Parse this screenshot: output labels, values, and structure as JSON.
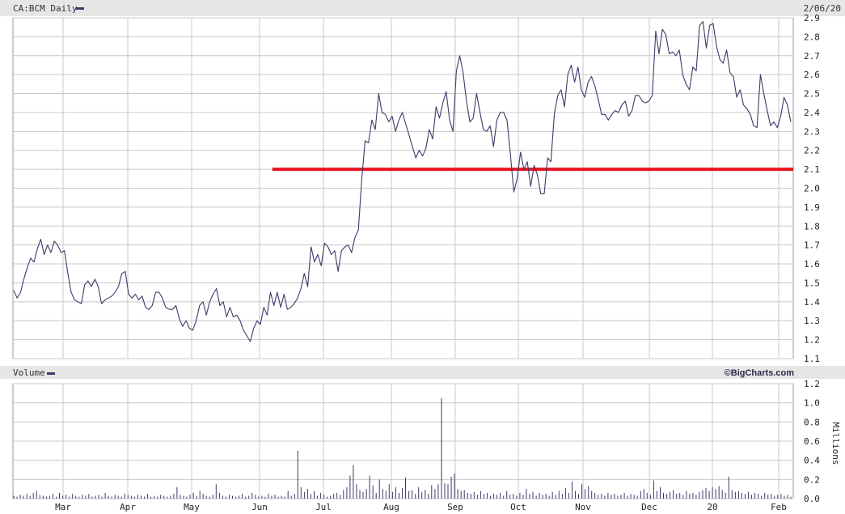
{
  "chart_data": [
    {
      "type": "line",
      "title": "CA:BCM Daily",
      "date_label": "2/06/20",
      "y_axis": {
        "range": [
          1.1,
          2.9
        ],
        "ticks": [
          "2.9",
          "2.8",
          "2.7",
          "2.6",
          "2.5",
          "2.4",
          "2.3",
          "2.2",
          "2.1",
          "2.0",
          "1.9",
          "1.8",
          "1.7",
          "1.6",
          "1.5",
          "1.4",
          "1.3",
          "1.2",
          "1.1"
        ]
      },
      "grid": true,
      "colors": {
        "price_line": "#3a3a6a",
        "support_line": "#e8141e",
        "grid": "#c8c8c8",
        "header_band": "#e6e6e6"
      },
      "support_line": {
        "value": 2.1,
        "start_month_index": 3.2
      },
      "series": [
        {
          "name": "CA:BCM",
          "values": [
            1.46,
            1.42,
            1.45,
            1.52,
            1.58,
            1.63,
            1.61,
            1.68,
            1.73,
            1.65,
            1.7,
            1.66,
            1.72,
            1.7,
            1.66,
            1.67,
            1.55,
            1.45,
            1.41,
            1.4,
            1.39,
            1.49,
            1.51,
            1.48,
            1.52,
            1.48,
            1.39,
            1.41,
            1.42,
            1.43,
            1.45,
            1.48,
            1.55,
            1.56,
            1.44,
            1.42,
            1.44,
            1.41,
            1.43,
            1.37,
            1.36,
            1.38,
            1.45,
            1.45,
            1.42,
            1.37,
            1.36,
            1.36,
            1.38,
            1.31,
            1.27,
            1.3,
            1.26,
            1.25,
            1.3,
            1.38,
            1.4,
            1.33,
            1.4,
            1.44,
            1.47,
            1.38,
            1.4,
            1.32,
            1.37,
            1.32,
            1.33,
            1.3,
            1.25,
            1.22,
            1.19,
            1.26,
            1.3,
            1.28,
            1.37,
            1.33,
            1.45,
            1.38,
            1.45,
            1.37,
            1.44,
            1.36,
            1.37,
            1.39,
            1.42,
            1.47,
            1.55,
            1.48,
            1.69,
            1.61,
            1.65,
            1.59,
            1.71,
            1.69,
            1.65,
            1.67,
            1.56,
            1.67,
            1.69,
            1.7,
            1.66,
            1.74,
            1.78,
            2.05,
            2.25,
            2.24,
            2.36,
            2.31,
            2.5,
            2.4,
            2.39,
            2.35,
            2.38,
            2.3,
            2.36,
            2.4,
            2.34,
            2.28,
            2.22,
            2.16,
            2.2,
            2.17,
            2.21,
            2.31,
            2.26,
            2.43,
            2.37,
            2.45,
            2.51,
            2.36,
            2.3,
            2.62,
            2.7,
            2.61,
            2.46,
            2.35,
            2.37,
            2.5,
            2.4,
            2.31,
            2.3,
            2.33,
            2.22,
            2.36,
            2.4,
            2.4,
            2.36,
            2.18,
            1.98,
            2.05,
            2.19,
            2.1,
            2.14,
            2.01,
            2.12,
            2.07,
            1.97,
            1.97,
            2.16,
            2.14,
            2.39,
            2.49,
            2.52,
            2.43,
            2.6,
            2.65,
            2.56,
            2.64,
            2.52,
            2.48,
            2.56,
            2.59,
            2.54,
            2.47,
            2.39,
            2.39,
            2.36,
            2.39,
            2.41,
            2.4,
            2.44,
            2.46,
            2.38,
            2.41,
            2.49,
            2.49,
            2.46,
            2.45,
            2.46,
            2.49,
            2.83,
            2.71,
            2.84,
            2.81,
            2.71,
            2.72,
            2.7,
            2.73,
            2.6,
            2.55,
            2.52,
            2.64,
            2.62,
            2.86,
            2.88,
            2.74,
            2.86,
            2.87,
            2.75,
            2.68,
            2.66,
            2.73,
            2.61,
            2.59,
            2.48,
            2.52,
            2.44,
            2.42,
            2.39,
            2.33,
            2.32,
            2.6,
            2.5,
            2.41,
            2.33,
            2.35,
            2.32,
            2.38,
            2.48,
            2.44,
            2.35
          ]
        }
      ]
    },
    {
      "type": "bar",
      "title": "Volume",
      "brand": "©BigCharts.com",
      "ylabel": "Millions",
      "y_axis": {
        "range": [
          0,
          1.2
        ],
        "ticks": [
          "1.2",
          "1.0",
          "0.8",
          "0.6",
          "0.4",
          "0.2",
          "0.0"
        ]
      },
      "x_axis": {
        "month_labels": [
          "Mar",
          "Apr",
          "May",
          "Jun",
          "Jul",
          "Aug",
          "Sep",
          "Oct",
          "Nov",
          "Dec",
          "20",
          "Feb"
        ]
      },
      "colors": {
        "bar": "#3a3a6a"
      },
      "series": [
        {
          "name": "Volume",
          "values": [
            0.03,
            0.02,
            0.04,
            0.03,
            0.05,
            0.03,
            0.06,
            0.08,
            0.04,
            0.03,
            0.02,
            0.03,
            0.05,
            0.02,
            0.06,
            0.03,
            0.04,
            0.02,
            0.05,
            0.03,
            0.02,
            0.04,
            0.03,
            0.05,
            0.02,
            0.03,
            0.04,
            0.02,
            0.06,
            0.03,
            0.02,
            0.04,
            0.03,
            0.02,
            0.05,
            0.04,
            0.03,
            0.02,
            0.04,
            0.03,
            0.02,
            0.05,
            0.02,
            0.03,
            0.02,
            0.04,
            0.03,
            0.02,
            0.03,
            0.05,
            0.12,
            0.04,
            0.03,
            0.02,
            0.04,
            0.06,
            0.03,
            0.08,
            0.05,
            0.03,
            0.02,
            0.04,
            0.15,
            0.06,
            0.03,
            0.02,
            0.04,
            0.03,
            0.02,
            0.03,
            0.05,
            0.02,
            0.03,
            0.06,
            0.04,
            0.02,
            0.03,
            0.02,
            0.05,
            0.03,
            0.04,
            0.02,
            0.03,
            0.02,
            0.08,
            0.03,
            0.05,
            0.5,
            0.12,
            0.07,
            0.1,
            0.05,
            0.08,
            0.03,
            0.06,
            0.04,
            0.02,
            0.03,
            0.05,
            0.06,
            0.04,
            0.09,
            0.12,
            0.24,
            0.35,
            0.15,
            0.09,
            0.07,
            0.1,
            0.24,
            0.14,
            0.06,
            0.2,
            0.1,
            0.08,
            0.15,
            0.07,
            0.12,
            0.06,
            0.11,
            0.22,
            0.08,
            0.09,
            0.05,
            0.12,
            0.07,
            0.09,
            0.05,
            0.14,
            0.1,
            0.15,
            1.05,
            0.16,
            0.15,
            0.23,
            0.26,
            0.1,
            0.08,
            0.09,
            0.06,
            0.05,
            0.07,
            0.04,
            0.08,
            0.05,
            0.06,
            0.03,
            0.05,
            0.04,
            0.06,
            0.03,
            0.08,
            0.04,
            0.05,
            0.03,
            0.06,
            0.04,
            0.1,
            0.05,
            0.07,
            0.03,
            0.06,
            0.04,
            0.05,
            0.03,
            0.07,
            0.04,
            0.08,
            0.05,
            0.11,
            0.06,
            0.18,
            0.08,
            0.05,
            0.15,
            0.1,
            0.13,
            0.08,
            0.06,
            0.04,
            0.05,
            0.03,
            0.06,
            0.04,
            0.05,
            0.03,
            0.04,
            0.06,
            0.03,
            0.05,
            0.04,
            0.03,
            0.08,
            0.1,
            0.06,
            0.04,
            0.19,
            0.08,
            0.12,
            0.06,
            0.05,
            0.07,
            0.09,
            0.05,
            0.06,
            0.04,
            0.08,
            0.05,
            0.06,
            0.04,
            0.07,
            0.09,
            0.11,
            0.08,
            0.12,
            0.1,
            0.13,
            0.09,
            0.06,
            0.23,
            0.09,
            0.07,
            0.08,
            0.06,
            0.05,
            0.07,
            0.04,
            0.06,
            0.05,
            0.03,
            0.06,
            0.04,
            0.05,
            0.03,
            0.04,
            0.05,
            0.03,
            0.04,
            0.02
          ]
        }
      ]
    }
  ]
}
